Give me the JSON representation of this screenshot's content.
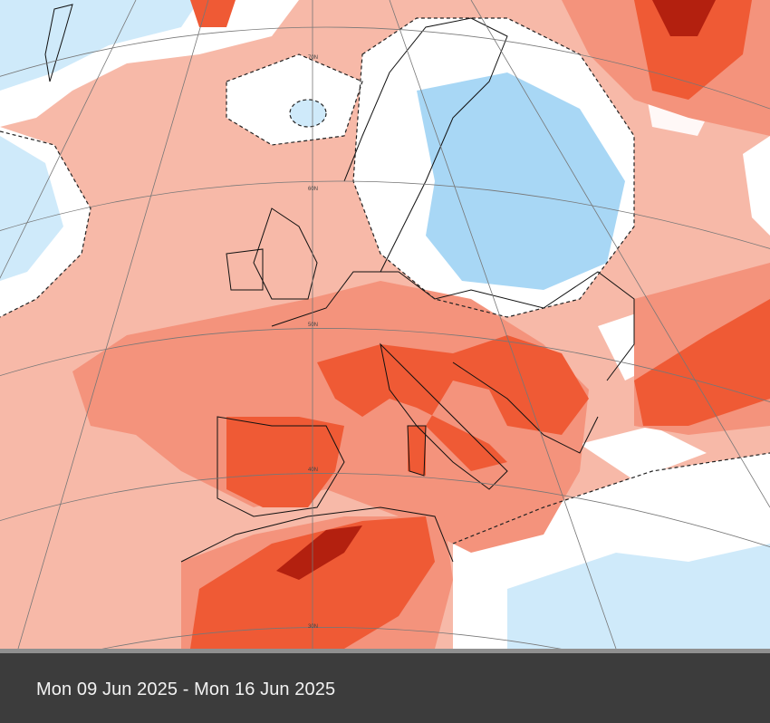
{
  "map": {
    "type": "temperature anomaly map",
    "region": "Europe",
    "latitude_labels": [
      "70N",
      "60N",
      "50N",
      "40N",
      "30N"
    ],
    "colors": {
      "weak_warm": "#f7b9a8",
      "moderate_warm": "#f4937c",
      "strong_warm": "#ef5a35",
      "extreme_warm": "#b3200f",
      "neutral": "#ffffff",
      "weak_cold": "#cfeafa",
      "moderate_cold": "#a8d7f5"
    }
  },
  "footer": {
    "date_range": "Mon 09 Jun 2025 - Mon 16 Jun 2025"
  }
}
